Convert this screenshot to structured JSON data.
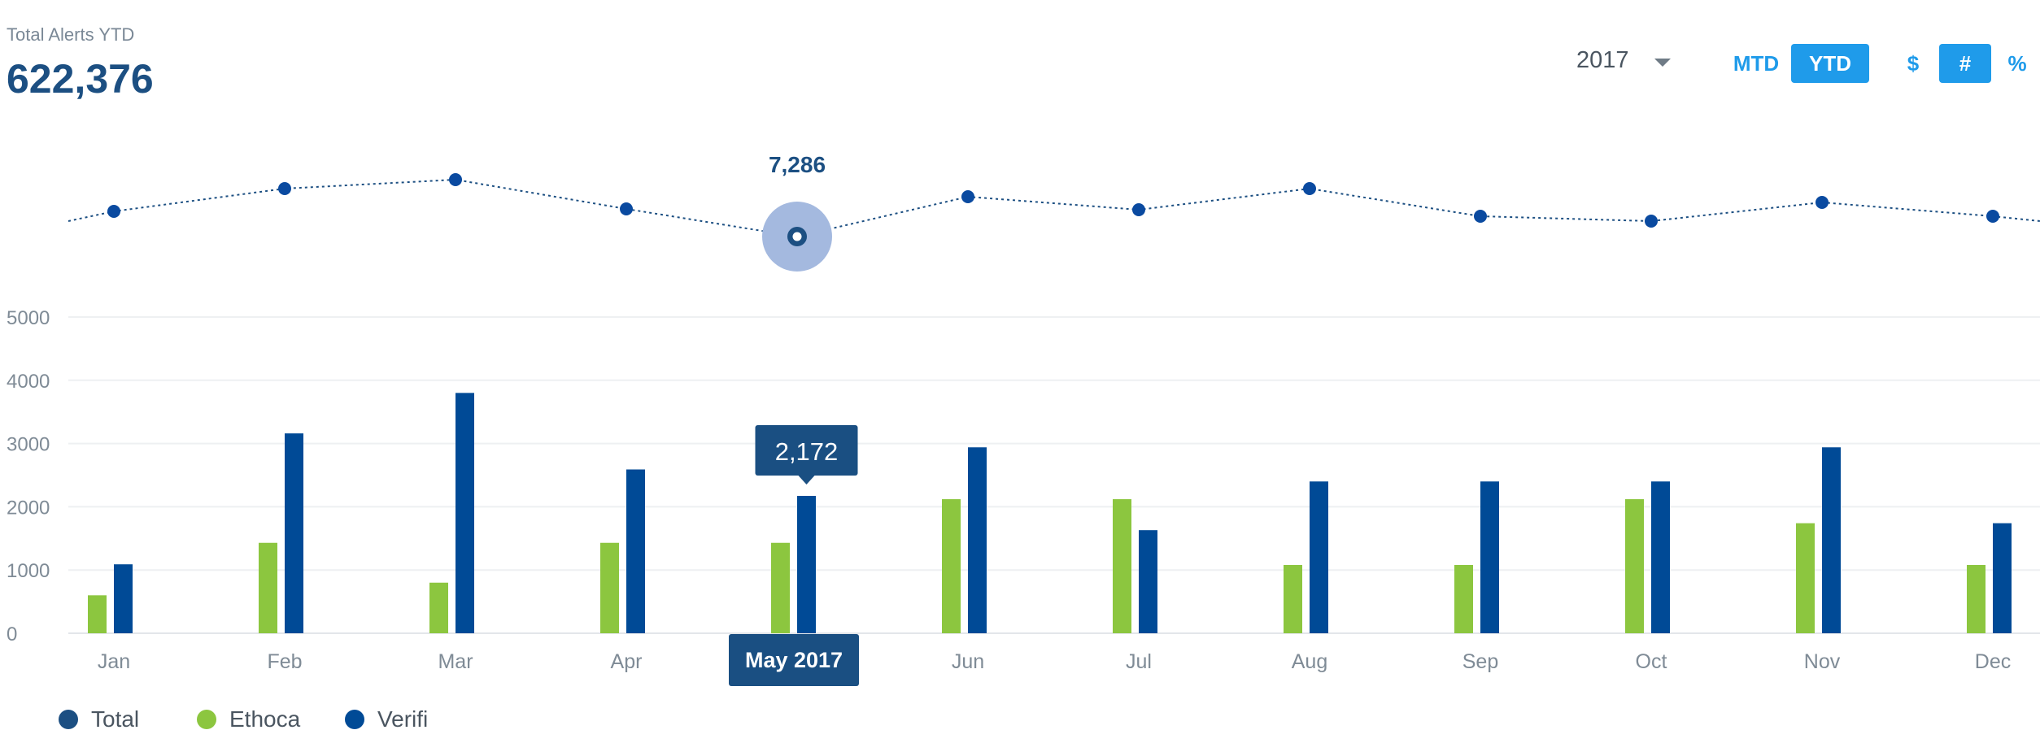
{
  "header": {
    "kpi_label": "Total Alerts YTD",
    "kpi_value": "622,376",
    "year": "2017"
  },
  "toggles": [
    {
      "label": "MTD",
      "active": false
    },
    {
      "label": "YTD",
      "active": true
    },
    {
      "label": "$",
      "active": false
    },
    {
      "label": "#",
      "active": true
    },
    {
      "label": "%",
      "active": false
    }
  ],
  "colors": {
    "total": "#1c4f82",
    "ethoca": "#8cc63f",
    "verifi": "#004a96",
    "accent": "#1f9bea",
    "tooltip": "#1a4f82"
  },
  "chart_data": [
    {
      "type": "line",
      "series": [
        {
          "name": "Total",
          "values": [
            null,
            null,
            null,
            null,
            7286,
            null,
            null,
            null,
            null,
            null,
            null,
            null
          ]
        }
      ],
      "categories": [
        "Jan",
        "Feb",
        "Mar",
        "Apr",
        "May",
        "Jun",
        "Jul",
        "Aug",
        "Sep",
        "Oct",
        "Nov",
        "Dec"
      ],
      "highlight": {
        "index": 4,
        "label": "7,286"
      }
    },
    {
      "type": "bar",
      "categories": [
        "Jan",
        "Feb",
        "Mar",
        "Apr",
        "May",
        "Jun",
        "Jul",
        "Aug",
        "Sep",
        "Oct",
        "Nov",
        "Dec"
      ],
      "series": [
        {
          "name": "Ethoca",
          "values": [
            600,
            1430,
            800,
            1430,
            1430,
            2120,
            2120,
            1080,
            1080,
            2120,
            1740,
            1080
          ]
        },
        {
          "name": "Verifi",
          "values": [
            1090,
            3160,
            3800,
            2590,
            2172,
            2940,
            1630,
            2400,
            2400,
            2400,
            2940,
            1740
          ]
        }
      ],
      "yticks": [
        0,
        1000,
        2000,
        3000,
        4000,
        5000
      ],
      "ylim": [
        0,
        5000
      ],
      "highlight": {
        "index": 4,
        "value_label": "2,172",
        "category_label": "May 2017"
      },
      "legend": [
        "Total",
        "Ethoca",
        "Verifi"
      ]
    }
  ]
}
